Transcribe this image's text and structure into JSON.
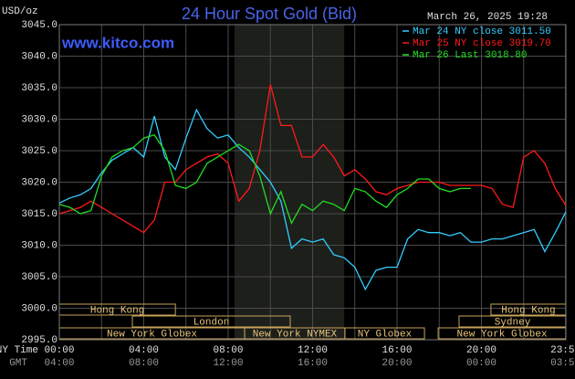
{
  "chart_data": {
    "type": "line",
    "title": "24 Hour Spot Gold (Bid)",
    "timestamp": "March 26, 2025 19:28",
    "site": "www.kitco.com",
    "y_axis_label": "USD/oz",
    "x_row_label": "NY Time",
    "gmt_row_label": "GMT",
    "background": "#000000",
    "grid": true,
    "grid_color": "#4a4a4a",
    "shaded_range": [
      8.3,
      13.5
    ],
    "shaded_color": "#1d1f1b",
    "xlim": [
      0,
      24
    ],
    "ylim": [
      2995,
      3045
    ],
    "xticks": [
      {
        "value": 0,
        "label": "00:00"
      },
      {
        "value": 4,
        "label": "04:00"
      },
      {
        "value": 8,
        "label": "08:00"
      },
      {
        "value": 12,
        "label": "12:00"
      },
      {
        "value": 16,
        "label": "16:00"
      },
      {
        "value": 20,
        "label": "20:00"
      },
      {
        "value": 23.983,
        "label": "23:59"
      }
    ],
    "x_minor_ticks": [
      2,
      6,
      10,
      14,
      18,
      22
    ],
    "gmt_ticks": [
      {
        "value": 0,
        "label": "04:00"
      },
      {
        "value": 4,
        "label": "08:00"
      },
      {
        "value": 8,
        "label": "12:00"
      },
      {
        "value": 12,
        "label": "16:00"
      },
      {
        "value": 16,
        "label": "20:00"
      },
      {
        "value": 20,
        "label": "00:00"
      },
      {
        "value": 23.983,
        "label": "03:59"
      }
    ],
    "yticks": [
      {
        "value": 2995,
        "label": "2995.0"
      },
      {
        "value": 3000,
        "label": "3000.0"
      },
      {
        "value": 3005,
        "label": "3005.0"
      },
      {
        "value": 3010,
        "label": "3010.0"
      },
      {
        "value": 3015,
        "label": "3015.0"
      },
      {
        "value": 3020,
        "label": "3020.0"
      },
      {
        "value": 3025,
        "label": "3025.0"
      },
      {
        "value": 3030,
        "label": "3030.0"
      },
      {
        "value": 3035,
        "label": "3035.0"
      },
      {
        "value": 3040,
        "label": "3040.0"
      },
      {
        "value": 3045,
        "label": "3045.0"
      }
    ],
    "sessions": [
      {
        "label": "Hong Kong",
        "row": 0,
        "start": 0,
        "end": 5.5
      },
      {
        "label": "Hong Kong",
        "row": 0,
        "start": 20.45,
        "end": 24
      },
      {
        "label": "London",
        "row": 1,
        "start": 3.46,
        "end": 10.94
      },
      {
        "label": "Sydney",
        "row": 1,
        "start": 18.94,
        "end": 24
      },
      {
        "label": "New York Globex",
        "row": 2,
        "start": 0,
        "end": 8.78
      },
      {
        "label": "New York NYMEX",
        "row": 2,
        "start": 8.78,
        "end": 13.53
      },
      {
        "label": "NY Globex",
        "row": 2,
        "start": 13.53,
        "end": 17.3
      },
      {
        "label": "New York Globex",
        "row": 2,
        "start": 17.95,
        "end": 24
      }
    ],
    "x": [
      0,
      0.5,
      1,
      1.5,
      2,
      2.5,
      3,
      3.5,
      4,
      4.5,
      5,
      5.5,
      6,
      6.5,
      7,
      7.5,
      8,
      8.5,
      9,
      9.5,
      10,
      10.5,
      11,
      11.5,
      12,
      12.5,
      13,
      13.5,
      14,
      14.5,
      15,
      15.5,
      16,
      16.5,
      17,
      17.5,
      18,
      18.5,
      19,
      19.5,
      20,
      20.5,
      21,
      21.5,
      22,
      22.5,
      23,
      23.5,
      24
    ],
    "series": [
      {
        "name": "Mar 24 NY close 3011.50",
        "color": "#33ccff",
        "values": [
          3016.7,
          3017.5,
          3018,
          3019,
          3021.5,
          3023.5,
          3024.5,
          3025.5,
          3024,
          3030.5,
          3024,
          3022,
          3027,
          3031.5,
          3028.5,
          3027,
          3027.5,
          3025.5,
          3024,
          3022,
          3020,
          3017,
          3009.5,
          3011,
          3010.5,
          3011,
          3008.5,
          3008,
          3006.5,
          3003,
          3006,
          3006.5,
          3006.5,
          3011,
          3012.5,
          3012,
          3012,
          3011.5,
          3012,
          3010.5,
          3010.5,
          3011,
          3011,
          3011.5,
          3012,
          3012.5,
          3009,
          3012,
          3015.3
        ]
      },
      {
        "name": "Mar 25 NY close 3019.70",
        "color": "#ff1a1a",
        "values": [
          3015,
          3015.5,
          3016,
          3017,
          3016,
          3015,
          3014,
          3013,
          3012,
          3014,
          3020,
          3020,
          3022,
          3023,
          3024,
          3024.5,
          3023,
          3017,
          3019,
          3025,
          3035.5,
          3029,
          3029,
          3024,
          3024,
          3026,
          3024,
          3021,
          3022,
          3020.5,
          3018.5,
          3018,
          3019,
          3019.5,
          3020,
          3020,
          3020,
          3019.5,
          3019.5,
          3019.5,
          3019.5,
          3019,
          3016.5,
          3016,
          3024,
          3025,
          3023,
          3019,
          3016.3
        ]
      },
      {
        "name": "Mar 26 Last 3018.80",
        "color": "#22dd22",
        "values": [
          3016.5,
          3016,
          3015,
          3015.5,
          3021,
          3024,
          3025,
          3025.5,
          3027,
          3027.5,
          3025,
          3019.5,
          3019,
          3020,
          3023,
          3024,
          3025,
          3026,
          3025,
          3021,
          3015,
          3018.5,
          3013.5,
          3016.5,
          3015.5,
          3017,
          3016.5,
          3015.5,
          3019,
          3018.5,
          3017,
          3016,
          3018,
          3019,
          3020.5,
          3020.5,
          3019,
          3018.5,
          3019,
          3019,
          null,
          null,
          null,
          null,
          null,
          null,
          null,
          null,
          null
        ]
      }
    ]
  }
}
